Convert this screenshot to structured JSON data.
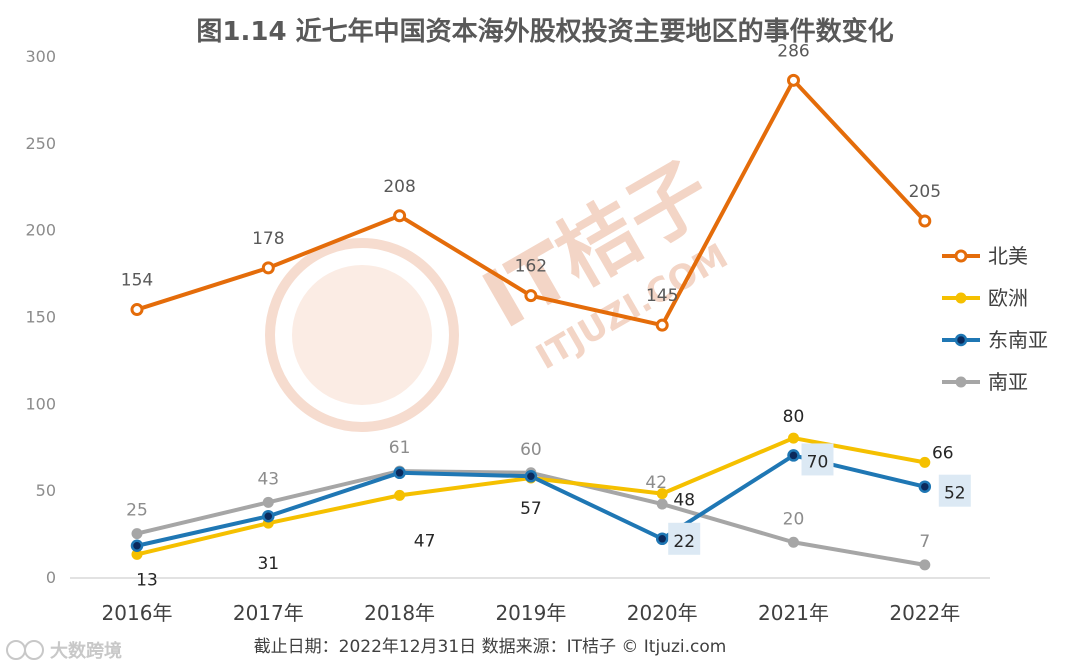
{
  "chart_data": {
    "type": "line",
    "title": "图1.14 近七年中国资本海外股权投资主要地区的事件数变化",
    "categories": [
      "2016年",
      "2017年",
      "2018年",
      "2019年",
      "2020年",
      "2021年",
      "2022年"
    ],
    "ylim": [
      0,
      300
    ],
    "yticks": [
      0,
      50,
      100,
      150,
      200,
      250,
      300
    ],
    "grid": false,
    "legend_position": "right",
    "series": [
      {
        "name": "北美",
        "color": "#e46c0a",
        "values": [
          154,
          178,
          208,
          162,
          145,
          286,
          205
        ]
      },
      {
        "name": "欧洲",
        "color": "#f5c000",
        "values": [
          13,
          31,
          47,
          57,
          48,
          80,
          66
        ]
      },
      {
        "name": "东南亚",
        "color": "#1f77b4",
        "values": [
          18,
          35,
          60,
          58,
          22,
          70,
          52
        ]
      },
      {
        "name": "南亚",
        "color": "#a6a6a6",
        "values": [
          25,
          43,
          61,
          60,
          42,
          20,
          7
        ]
      }
    ]
  },
  "footer": "截止日期：2022年12月31日    数据来源：IT桔子 © Itjuzi.com",
  "watermark": {
    "brand": "IT桔子",
    "url": "ITJUZI.COM"
  },
  "corner_logo": "大数跨境"
}
